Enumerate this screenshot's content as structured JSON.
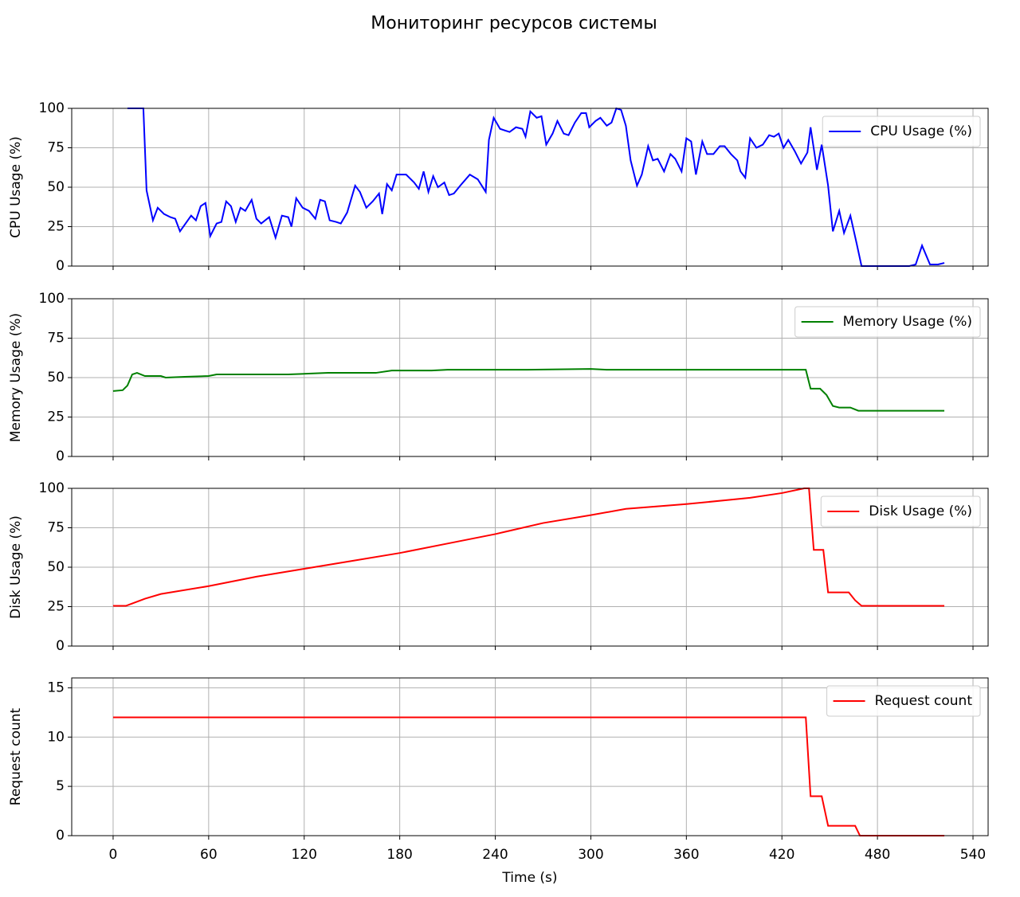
{
  "title": "Мониторинг ресурсов системы",
  "chart_data": [
    {
      "type": "line",
      "ylabel": "CPU Usage (%)",
      "xlim": [
        -26,
        549.5
      ],
      "ylim": [
        0,
        100
      ],
      "yticks": [
        0,
        25,
        50,
        75,
        100
      ],
      "grid": true,
      "legend": "upper right",
      "x": [
        9,
        19,
        21,
        25,
        28,
        32,
        36,
        39,
        42,
        49,
        52,
        55,
        58,
        61,
        65,
        68,
        71,
        74,
        77,
        80,
        83,
        87,
        90,
        93,
        98,
        102,
        106,
        110,
        112,
        115,
        119,
        123,
        127,
        130,
        133,
        136,
        140,
        143,
        147,
        152,
        155,
        159,
        163,
        167,
        169,
        172,
        175,
        178,
        184,
        189,
        192,
        195,
        198,
        201,
        204,
        208,
        211,
        214,
        218,
        224,
        229,
        234,
        236,
        239,
        243,
        249,
        253,
        257,
        259,
        262,
        266,
        269,
        272,
        276,
        279,
        283,
        286,
        290,
        294,
        297,
        299,
        303,
        306,
        310,
        313,
        316,
        319,
        322,
        325,
        329,
        332,
        336,
        339,
        342,
        346,
        350,
        353,
        357,
        360,
        363,
        366,
        370,
        373,
        377,
        381,
        384,
        388,
        392,
        394,
        397,
        400,
        404,
        408,
        412,
        415,
        418,
        421,
        424,
        428,
        432,
        436,
        438,
        442,
        445,
        449,
        452,
        456,
        459,
        463,
        467,
        470,
        480,
        490,
        500,
        504,
        508,
        513,
        518,
        522
      ],
      "series": [
        {
          "name": "CPU Usage (%)",
          "color": "#0000ff",
          "values": [
            100,
            100,
            48,
            29,
            37,
            33,
            31,
            30,
            22,
            32,
            29,
            38,
            40,
            19,
            27,
            28,
            41,
            38,
            28,
            37,
            35,
            42,
            30,
            27,
            31,
            18,
            32,
            31,
            25,
            43,
            37,
            35,
            30,
            42,
            41,
            29,
            28,
            27,
            34,
            51,
            47,
            37,
            41,
            46,
            33,
            52,
            48,
            58,
            58,
            53,
            49,
            60,
            47,
            57,
            50,
            53,
            45,
            46,
            51,
            58,
            55,
            47,
            80,
            94,
            87,
            85,
            88,
            87,
            82,
            98,
            94,
            95,
            77,
            84,
            92,
            84,
            83,
            91,
            97,
            97,
            88,
            92,
            94,
            89,
            91,
            100,
            99,
            89,
            67,
            51,
            58,
            76,
            67,
            68,
            60,
            71,
            68,
            60,
            81,
            79,
            58,
            79,
            71,
            71,
            76,
            76,
            71,
            67,
            60,
            56,
            81,
            75,
            77,
            83,
            82,
            84,
            75,
            80,
            73,
            65,
            72,
            88,
            61,
            77,
            51,
            22,
            35,
            21,
            32,
            14,
            0,
            0,
            0,
            0,
            1,
            13,
            1,
            1,
            2
          ]
        }
      ]
    },
    {
      "type": "line",
      "ylabel": "Memory Usage (%)",
      "xlim": [
        -26,
        549.5
      ],
      "ylim": [
        0,
        100
      ],
      "yticks": [
        0,
        25,
        50,
        75,
        100
      ],
      "grid": true,
      "legend": "upper right",
      "x": [
        0,
        6,
        9,
        12,
        15,
        20,
        30,
        33,
        45,
        60,
        65,
        90,
        110,
        135,
        165,
        175,
        200,
        210,
        260,
        300,
        310,
        420,
        435,
        438,
        444,
        448,
        452,
        456,
        463,
        468,
        475,
        522
      ],
      "series": [
        {
          "name": "Memory Usage (%)",
          "color": "#008000",
          "values": [
            41.5,
            42,
            45,
            52,
            53,
            51,
            51,
            50,
            50.5,
            51,
            52,
            52,
            52,
            53,
            53,
            54.5,
            54.5,
            55,
            55,
            55.5,
            55,
            55,
            55,
            43,
            43,
            39,
            32,
            31,
            31,
            29,
            29,
            29
          ]
        }
      ]
    },
    {
      "type": "line",
      "ylabel": "Disk Usage (%)",
      "xlim": [
        -26,
        549.5
      ],
      "ylim": [
        0,
        100
      ],
      "yticks": [
        0,
        25,
        50,
        75,
        100
      ],
      "grid": true,
      "legend": "upper right",
      "x": [
        0,
        8,
        12,
        20,
        30,
        60,
        90,
        120,
        150,
        180,
        210,
        240,
        270,
        300,
        322,
        360,
        390,
        400,
        420,
        434,
        437,
        440,
        446,
        449,
        462,
        466,
        470,
        522
      ],
      "series": [
        {
          "name": "Disk Usage (%)",
          "color": "#ff0000",
          "values": [
            25.5,
            25.5,
            27,
            30,
            33,
            38,
            44,
            49,
            54,
            59,
            65,
            71,
            78,
            83,
            87,
            90,
            93,
            94,
            97,
            100,
            100,
            61,
            61,
            34,
            34,
            29,
            25.5,
            25.5
          ]
        }
      ]
    },
    {
      "type": "line",
      "ylabel": "Request count",
      "xlabel": "Time (s)",
      "xlim": [
        -26,
        549.5
      ],
      "ylim": [
        0,
        16
      ],
      "yticks": [
        0,
        5,
        10,
        15
      ],
      "xticks": [
        0,
        60,
        120,
        180,
        240,
        300,
        360,
        420,
        480,
        540
      ],
      "grid": true,
      "legend": "upper right",
      "x": [
        0,
        435,
        438,
        445,
        449,
        466,
        469,
        522
      ],
      "series": [
        {
          "name": "Request count",
          "color": "#ff0000",
          "values": [
            12,
            12,
            4,
            4,
            1,
            1,
            0,
            0
          ]
        }
      ]
    }
  ]
}
